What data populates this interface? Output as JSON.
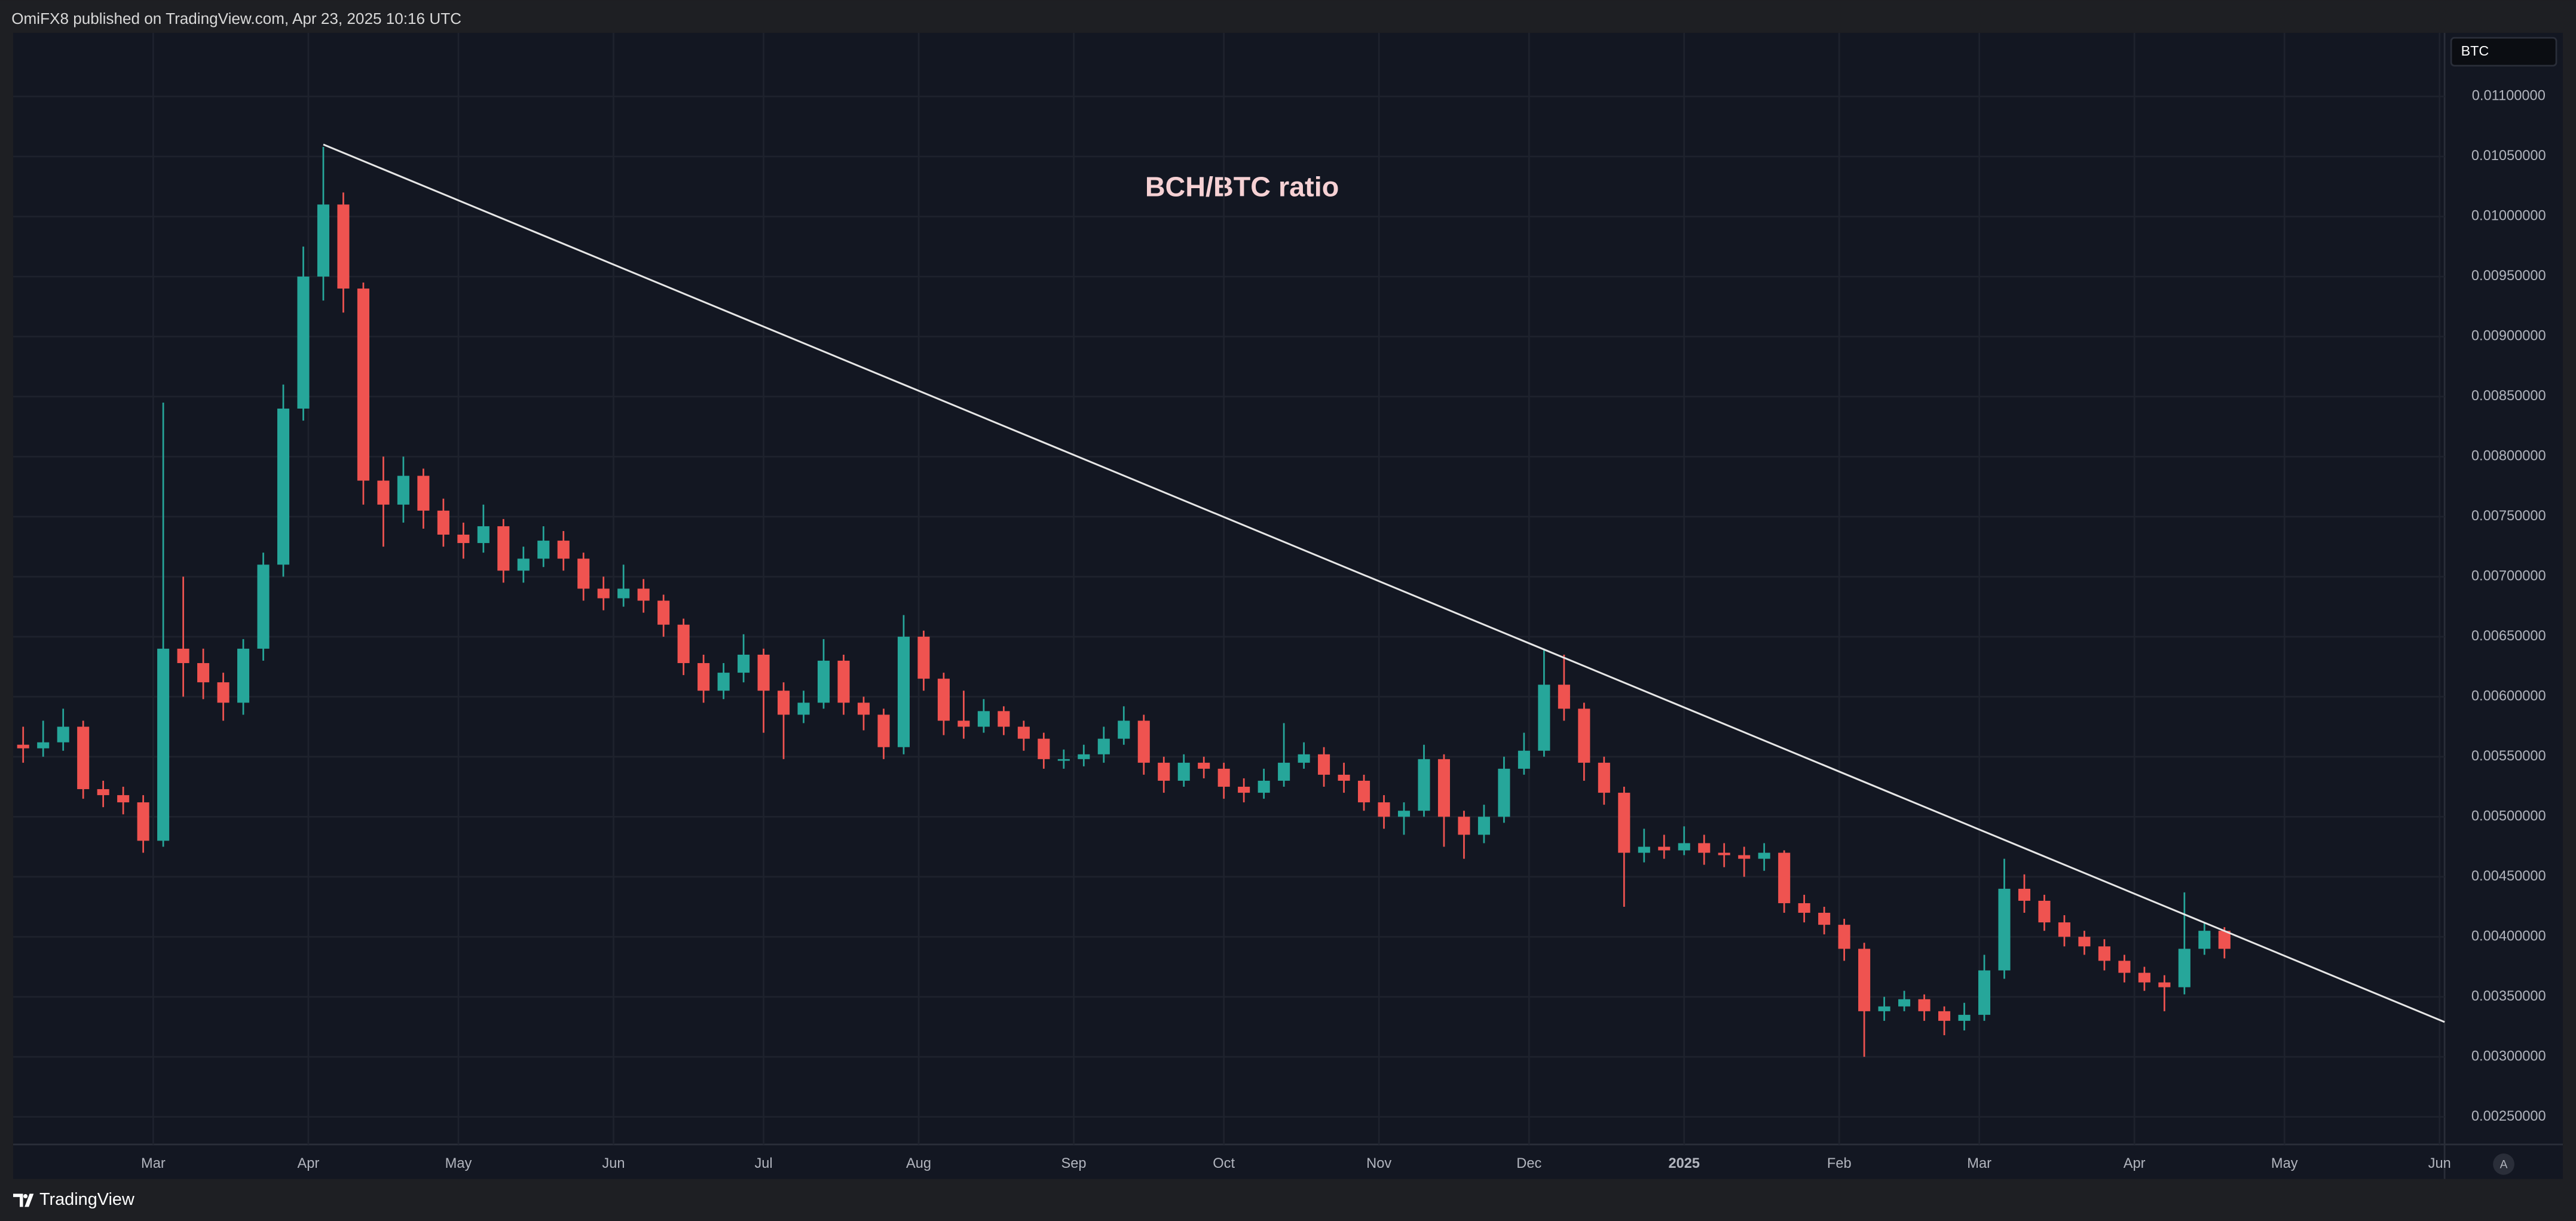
{
  "header": {
    "text": "OmiFX8 published on TradingView.com, Apr 23, 2025 10:16 UTC"
  },
  "footer": {
    "brand": "TradingView",
    "button": "A"
  },
  "chart_data": {
    "type": "candlestick",
    "symbol": "BTC",
    "title": "BCH/BTC ratio",
    "up_color": "#26a69a",
    "down_color": "#ef5350",
    "grid": true,
    "xlim": [
      -0.5,
      121
    ],
    "ylim": [
      0.00227,
      0.01153
    ],
    "xticks": [
      {
        "value": 6.5,
        "label": "Mar"
      },
      {
        "value": 14.25,
        "label": "Apr"
      },
      {
        "value": 21.75,
        "label": "May"
      },
      {
        "value": 29.5,
        "label": "Jun"
      },
      {
        "value": 37,
        "label": "Jul"
      },
      {
        "value": 44.75,
        "label": "Aug"
      },
      {
        "value": 52.5,
        "label": "Sep"
      },
      {
        "value": 60,
        "label": "Oct"
      },
      {
        "value": 67.75,
        "label": "Nov"
      },
      {
        "value": 75.25,
        "label": "Dec"
      },
      {
        "value": 83,
        "label": "2025"
      },
      {
        "value": 90.75,
        "label": "Feb"
      },
      {
        "value": 97.75,
        "label": "Mar"
      },
      {
        "value": 105.5,
        "label": "Apr"
      },
      {
        "value": 113,
        "label": "May"
      },
      {
        "value": 120.75,
        "label": "Jun"
      }
    ],
    "yticks": [
      {
        "value": 0.0025,
        "label": "0.00250000"
      },
      {
        "value": 0.003,
        "label": "0.00300000"
      },
      {
        "value": 0.0035,
        "label": "0.00350000"
      },
      {
        "value": 0.004,
        "label": "0.00400000"
      },
      {
        "value": 0.0045,
        "label": "0.00450000"
      },
      {
        "value": 0.005,
        "label": "0.00500000"
      },
      {
        "value": 0.0055,
        "label": "0.00550000"
      },
      {
        "value": 0.006,
        "label": "0.00600000"
      },
      {
        "value": 0.0065,
        "label": "0.00650000"
      },
      {
        "value": 0.007,
        "label": "0.00700000"
      },
      {
        "value": 0.0075,
        "label": "0.00750000"
      },
      {
        "value": 0.008,
        "label": "0.00800000"
      },
      {
        "value": 0.0085,
        "label": "0.00850000"
      },
      {
        "value": 0.009,
        "label": "0.00900000"
      },
      {
        "value": 0.0095,
        "label": "0.00950000"
      },
      {
        "value": 0.01,
        "label": "0.01000000"
      },
      {
        "value": 0.0105,
        "label": "0.01050000"
      },
      {
        "value": 0.011,
        "label": "0.01100000"
      }
    ],
    "trendline": {
      "color": "#e6e6e6",
      "x": [
        15,
        121
      ],
      "y": [
        0.0106,
        0.00329
      ]
    },
    "open": [
      0.0056,
      0.00557,
      0.00562,
      0.00575,
      0.00523,
      0.00518,
      0.00512,
      0.0048,
      0.0064,
      0.00628,
      0.00612,
      0.00595,
      0.0064,
      0.0071,
      0.0084,
      0.0095,
      0.0101,
      0.0094,
      0.0078,
      0.0076,
      0.00784,
      0.00755,
      0.00735,
      0.00728,
      0.00742,
      0.00705,
      0.00715,
      0.0073,
      0.00715,
      0.0069,
      0.00682,
      0.0069,
      0.0068,
      0.0066,
      0.00628,
      0.00605,
      0.0062,
      0.00635,
      0.00605,
      0.00585,
      0.00595,
      0.0063,
      0.00595,
      0.00585,
      0.00558,
      0.0065,
      0.00615,
      0.0058,
      0.00575,
      0.00588,
      0.00575,
      0.00565,
      0.00548,
      0.00548,
      0.00552,
      0.00565,
      0.0058,
      0.00545,
      0.0053,
      0.00545,
      0.0054,
      0.00525,
      0.0052,
      0.0053,
      0.00545,
      0.00552,
      0.00535,
      0.0053,
      0.00512,
      0.005,
      0.00505,
      0.00548,
      0.005,
      0.00485,
      0.005,
      0.0054,
      0.00555,
      0.0061,
      0.0059,
      0.00545,
      0.0052,
      0.0047,
      0.00475,
      0.00472,
      0.00478,
      0.0047,
      0.00468,
      0.00465,
      0.0047,
      0.00428,
      0.0042,
      0.0041,
      0.0039,
      0.00338,
      0.00342,
      0.00348,
      0.00338,
      0.0033,
      0.00335,
      0.00372,
      0.0044,
      0.0043,
      0.00412,
      0.004,
      0.00392,
      0.0038,
      0.0037,
      0.00362,
      0.00358,
      0.0039,
      0.00405
    ],
    "high": [
      0.00575,
      0.0058,
      0.0059,
      0.0058,
      0.0053,
      0.00525,
      0.00518,
      0.00845,
      0.007,
      0.0064,
      0.0062,
      0.00648,
      0.0072,
      0.0086,
      0.00975,
      0.01058,
      0.0102,
      0.00945,
      0.008,
      0.008,
      0.0079,
      0.00765,
      0.00745,
      0.0076,
      0.00748,
      0.00725,
      0.00742,
      0.00738,
      0.0072,
      0.007,
      0.0071,
      0.00698,
      0.00685,
      0.00665,
      0.00635,
      0.00628,
      0.00652,
      0.0064,
      0.00612,
      0.00605,
      0.00648,
      0.00635,
      0.006,
      0.0059,
      0.00668,
      0.00655,
      0.0062,
      0.00605,
      0.00598,
      0.00592,
      0.0058,
      0.0057,
      0.00556,
      0.0056,
      0.00575,
      0.00592,
      0.00585,
      0.0055,
      0.00552,
      0.0055,
      0.00545,
      0.00532,
      0.0054,
      0.00578,
      0.00562,
      0.00558,
      0.00545,
      0.00535,
      0.00518,
      0.00512,
      0.0056,
      0.00552,
      0.00505,
      0.0051,
      0.0055,
      0.0057,
      0.0064,
      0.00635,
      0.00595,
      0.0055,
      0.00525,
      0.0049,
      0.00485,
      0.00492,
      0.00485,
      0.00478,
      0.00475,
      0.00478,
      0.00472,
      0.00435,
      0.00425,
      0.00415,
      0.00395,
      0.0035,
      0.00355,
      0.00352,
      0.00342,
      0.00345,
      0.00385,
      0.00465,
      0.00452,
      0.00435,
      0.00418,
      0.00405,
      0.00398,
      0.00385,
      0.00375,
      0.00368,
      0.00437,
      0.00412,
      0.00408
    ],
    "low": [
      0.00545,
      0.0055,
      0.00555,
      0.00515,
      0.00508,
      0.00502,
      0.0047,
      0.00475,
      0.006,
      0.00598,
      0.0058,
      0.00585,
      0.0063,
      0.007,
      0.0083,
      0.0093,
      0.0092,
      0.0076,
      0.00725,
      0.00745,
      0.0074,
      0.00725,
      0.00715,
      0.0072,
      0.00695,
      0.00695,
      0.00708,
      0.00705,
      0.0068,
      0.00672,
      0.00675,
      0.0067,
      0.0065,
      0.00618,
      0.00595,
      0.00598,
      0.00612,
      0.0057,
      0.00548,
      0.00578,
      0.0059,
      0.00585,
      0.00572,
      0.00548,
      0.00552,
      0.00605,
      0.00568,
      0.00565,
      0.0057,
      0.00568,
      0.00555,
      0.0054,
      0.0054,
      0.00542,
      0.00545,
      0.0056,
      0.00535,
      0.0052,
      0.00525,
      0.00532,
      0.00515,
      0.00512,
      0.00515,
      0.00525,
      0.0054,
      0.00525,
      0.0052,
      0.00505,
      0.0049,
      0.00485,
      0.005,
      0.00475,
      0.00465,
      0.00478,
      0.00495,
      0.00535,
      0.0055,
      0.0058,
      0.0053,
      0.0051,
      0.00425,
      0.00462,
      0.00465,
      0.00468,
      0.0046,
      0.00458,
      0.0045,
      0.00455,
      0.0042,
      0.00412,
      0.00402,
      0.0038,
      0.003,
      0.0033,
      0.00338,
      0.0033,
      0.00318,
      0.00322,
      0.0033,
      0.00365,
      0.0042,
      0.00405,
      0.00392,
      0.00385,
      0.00372,
      0.00362,
      0.00355,
      0.00338,
      0.00352,
      0.00385,
      0.00382
    ],
    "close": [
      0.00557,
      0.00562,
      0.00575,
      0.00523,
      0.00518,
      0.00512,
      0.0048,
      0.0064,
      0.00628,
      0.00612,
      0.00595,
      0.0064,
      0.0071,
      0.0084,
      0.0095,
      0.0101,
      0.0094,
      0.0078,
      0.0076,
      0.00784,
      0.00755,
      0.00735,
      0.00728,
      0.00742,
      0.00705,
      0.00715,
      0.0073,
      0.00715,
      0.0069,
      0.00682,
      0.0069,
      0.0068,
      0.0066,
      0.00628,
      0.00605,
      0.0062,
      0.00635,
      0.00605,
      0.00585,
      0.00595,
      0.0063,
      0.00595,
      0.00585,
      0.00558,
      0.0065,
      0.00615,
      0.0058,
      0.00575,
      0.00588,
      0.00575,
      0.00565,
      0.00548,
      0.00548,
      0.00552,
      0.00565,
      0.0058,
      0.00545,
      0.0053,
      0.00545,
      0.0054,
      0.00525,
      0.0052,
      0.0053,
      0.00545,
      0.00552,
      0.00535,
      0.0053,
      0.00512,
      0.005,
      0.00505,
      0.00548,
      0.005,
      0.00485,
      0.005,
      0.0054,
      0.00555,
      0.0061,
      0.0059,
      0.00545,
      0.0052,
      0.0047,
      0.00475,
      0.00472,
      0.00478,
      0.0047,
      0.00468,
      0.00465,
      0.0047,
      0.00428,
      0.0042,
      0.0041,
      0.0039,
      0.00338,
      0.00342,
      0.00348,
      0.00338,
      0.0033,
      0.00335,
      0.00372,
      0.0044,
      0.0043,
      0.00412,
      0.004,
      0.00392,
      0.0038,
      0.0037,
      0.00362,
      0.00358,
      0.0039,
      0.00405,
      0.0039
    ]
  }
}
